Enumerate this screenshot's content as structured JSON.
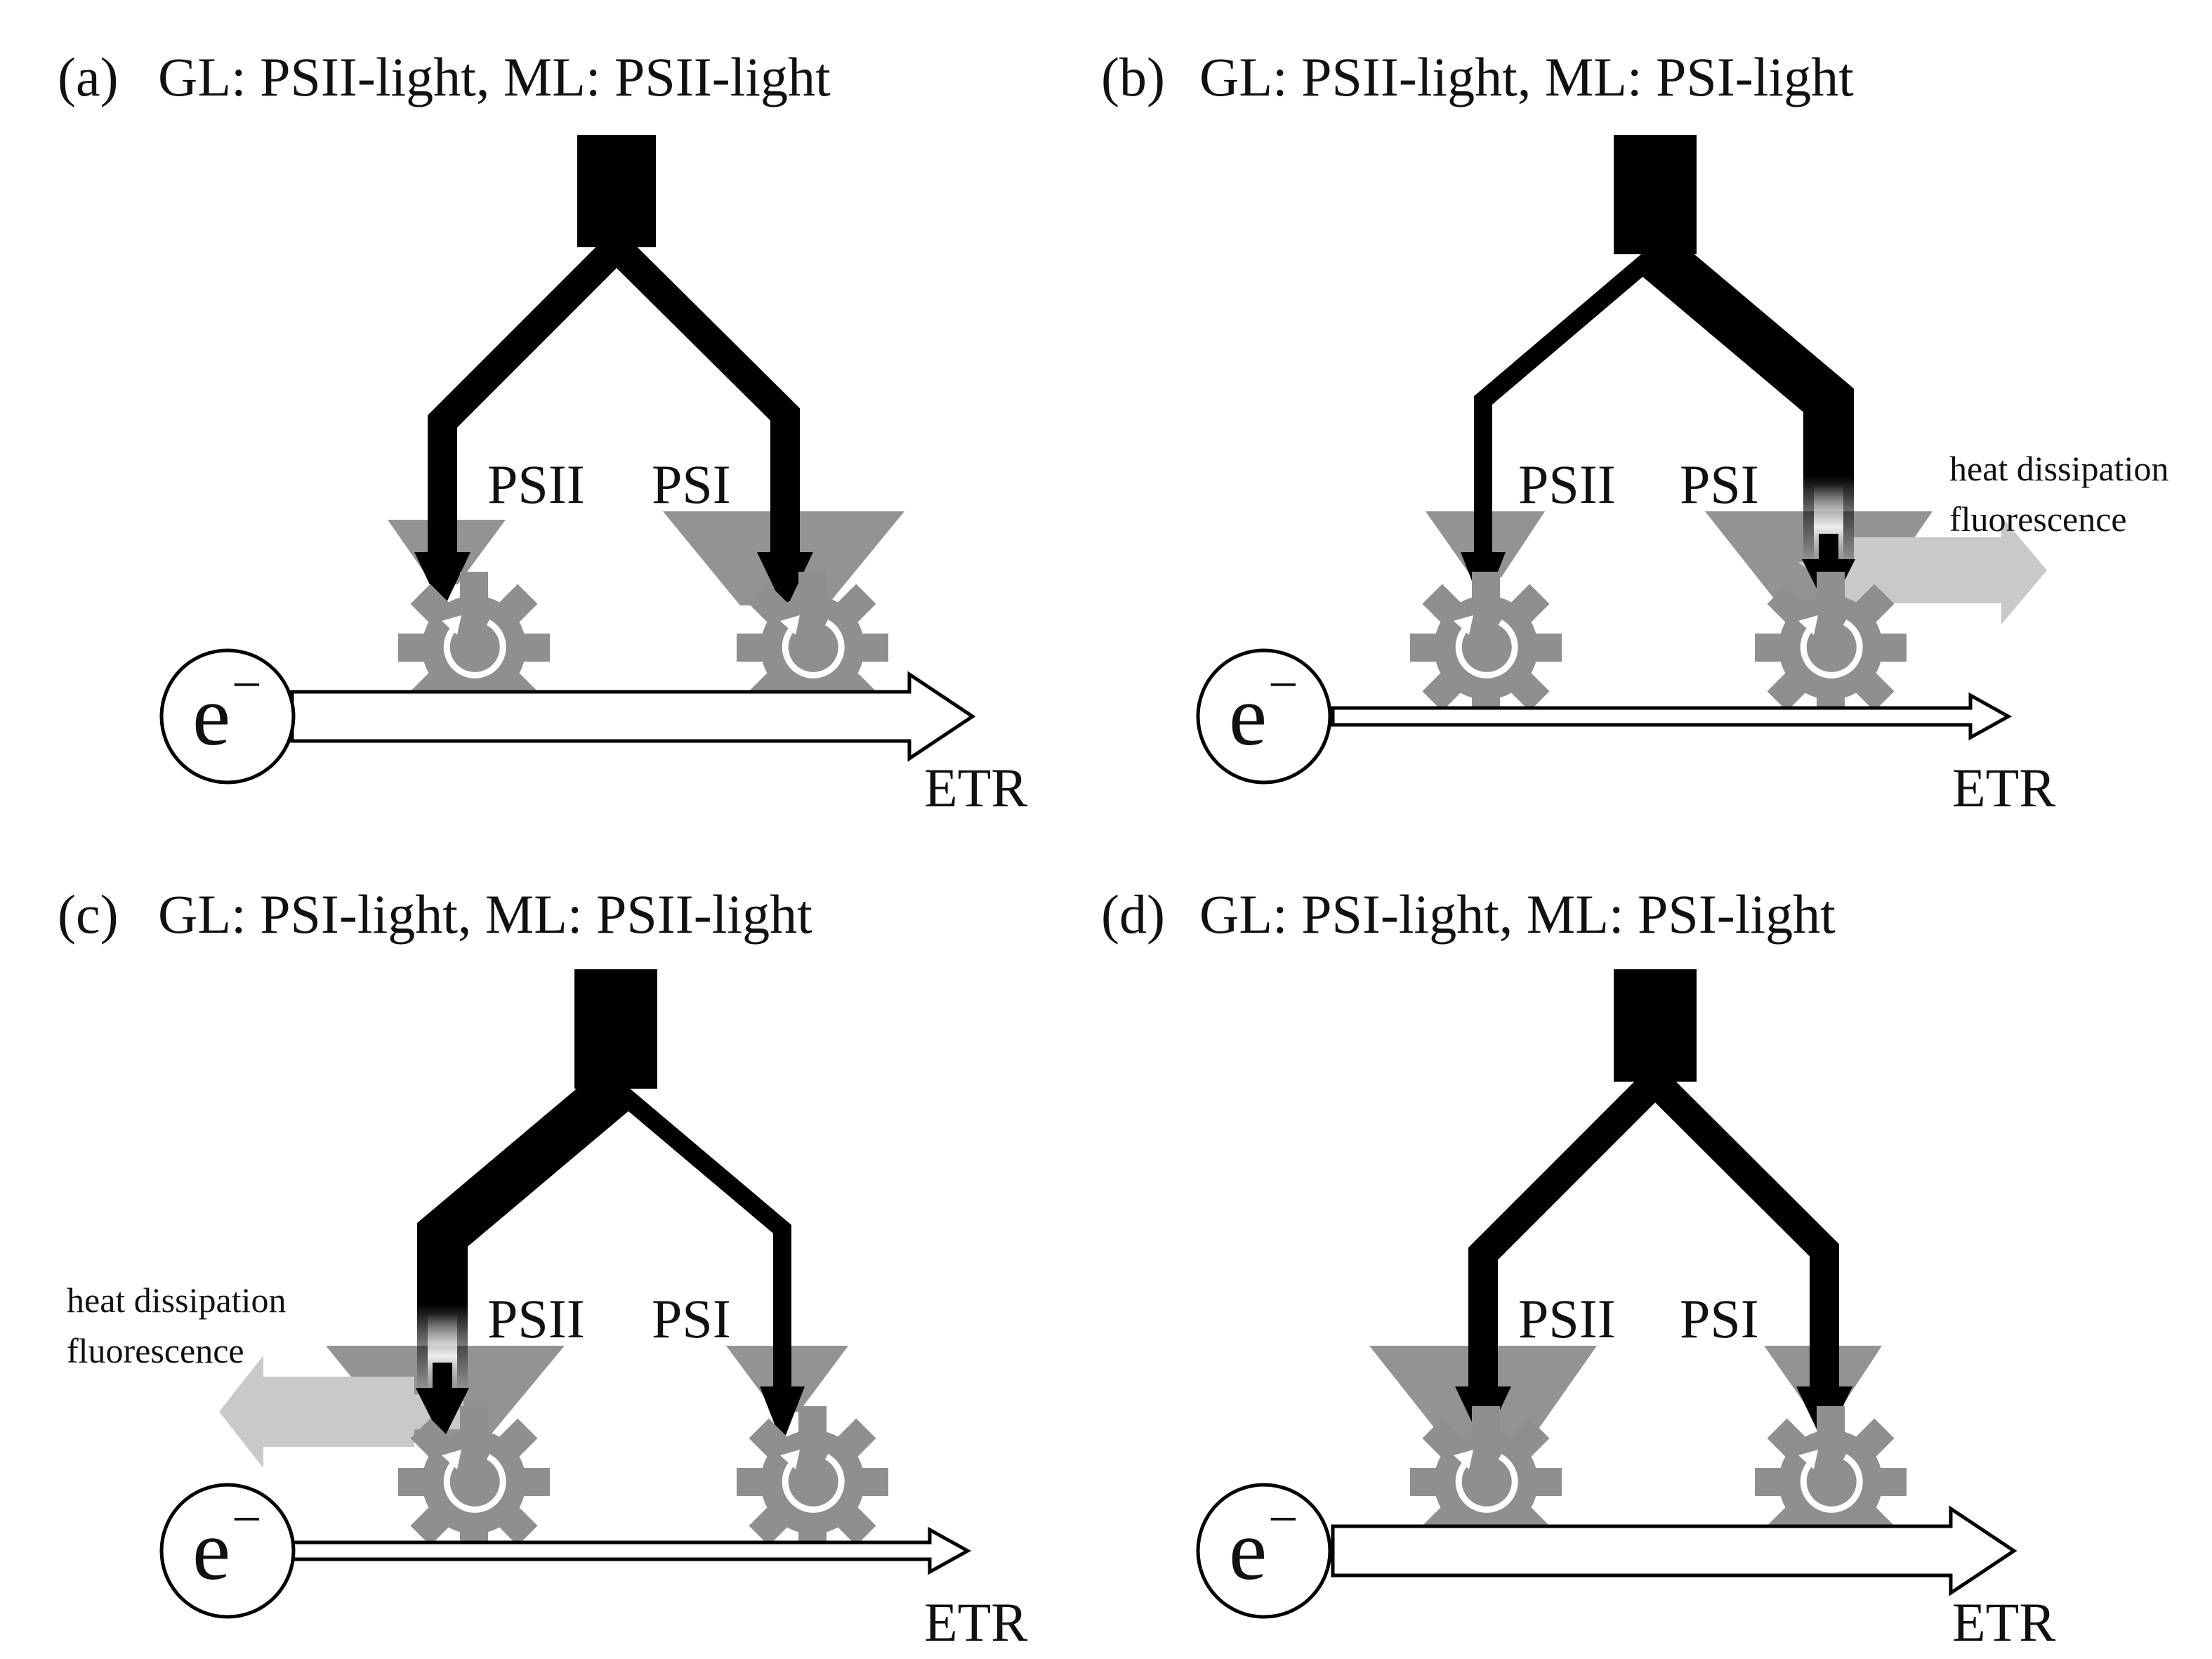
{
  "colors": {
    "flow": "#000000",
    "antenna": "#939393",
    "gear": "#8f8f8f",
    "loss_arrow": "#c9c9c9",
    "etr_arrow_fill": "#ffffff",
    "text": "#111111"
  },
  "icons": {
    "reaction_center": "gear-icon",
    "electron": "electron-icon"
  },
  "panels": [
    {
      "tag": "(a)",
      "title": "GL: PSII-light, ML: PSII-light",
      "psii_label": "PSII",
      "psi_label": "PSI",
      "electron_symbol": "e",
      "electron_sign": "−",
      "etr_label": "ETR",
      "relative_excitation": {
        "psii": 1.0,
        "psi": 1.0
      },
      "relative_antenna_size": {
        "psii": "small",
        "psi": "large"
      },
      "relative_etr": "high"
    },
    {
      "tag": "(b)",
      "title": "GL: PSII-light, ML: PSI-light",
      "psii_label": "PSII",
      "psi_label": "PSI",
      "electron_symbol": "e",
      "electron_sign": "−",
      "etr_label": "ETR",
      "loss_line1": "heat dissipation",
      "loss_line2": "fluorescence",
      "relative_excitation": {
        "psii": 0.5,
        "psi": 1.4
      },
      "relative_antenna_size": {
        "psii": "small",
        "psi": "large"
      },
      "relative_etr": "low"
    },
    {
      "tag": "(c)",
      "title": "GL: PSI-light, ML: PSII-light",
      "psii_label": "PSII",
      "psi_label": "PSI",
      "electron_symbol": "e",
      "electron_sign": "−",
      "etr_label": "ETR",
      "loss_line1": "heat dissipation",
      "loss_line2": "fluorescence",
      "relative_excitation": {
        "psii": 1.4,
        "psi": 0.5
      },
      "relative_antenna_size": {
        "psii": "large",
        "psi": "small"
      },
      "relative_etr": "low"
    },
    {
      "tag": "(d)",
      "title": "GL: PSI-light, ML: PSI-light",
      "psii_label": "PSII",
      "psi_label": "PSI",
      "electron_symbol": "e",
      "electron_sign": "−",
      "etr_label": "ETR",
      "relative_excitation": {
        "psii": 1.0,
        "psi": 1.0
      },
      "relative_antenna_size": {
        "psii": "large",
        "psi": "small"
      },
      "relative_etr": "high"
    }
  ]
}
